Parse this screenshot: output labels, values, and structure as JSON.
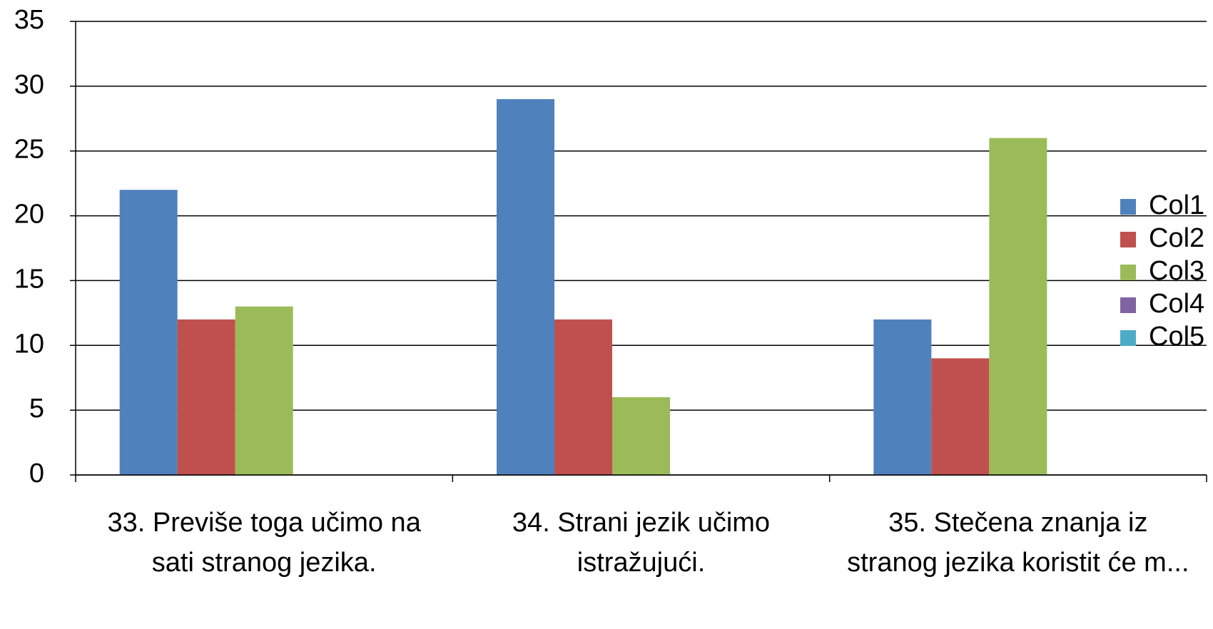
{
  "chart_data": {
    "type": "bar",
    "categories": [
      "33. Previše toga učimo na sati stranog jezika.",
      "34. Strani jezik učimo istražujući.",
      "35. Stečena znanja iz stranog jezika koristit će m..."
    ],
    "series": [
      {
        "name": "Col1",
        "color": "#4f81bd",
        "values": [
          22,
          29,
          12
        ]
      },
      {
        "name": "Col2",
        "color": "#c0504d",
        "values": [
          12,
          12,
          9
        ]
      },
      {
        "name": "Col3",
        "color": "#9bbb59",
        "values": [
          13,
          6,
          26
        ]
      },
      {
        "name": "Col4",
        "color": "#8064a2",
        "values": [
          0,
          0,
          0
        ]
      },
      {
        "name": "Col5",
        "color": "#4bacc6",
        "values": [
          0,
          0,
          0
        ]
      }
    ],
    "ylim": [
      0,
      35
    ],
    "yticks": [
      0,
      5,
      10,
      15,
      20,
      25,
      30,
      35
    ],
    "grid": true,
    "legend": "right"
  }
}
